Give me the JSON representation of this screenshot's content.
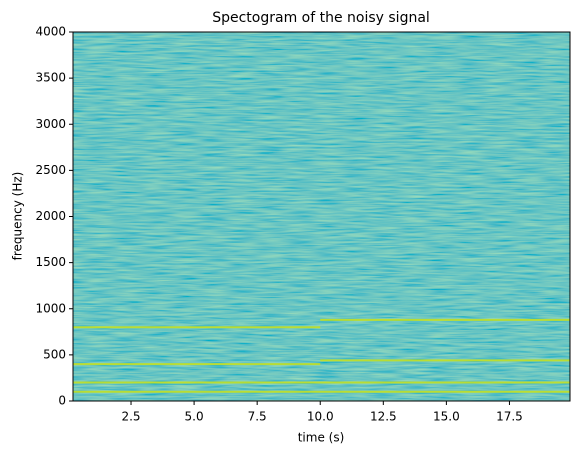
{
  "chart_data": {
    "type": "spectrogram",
    "title": "Spectogram of the noisy signal",
    "x_label": "time (s)",
    "y_label": "frequency (Hz)",
    "xlim": [
      0.2,
      19.9
    ],
    "ylim": [
      0,
      4000
    ],
    "xticks": [
      2.5,
      {
        "value": 5,
        "label": "5.0"
      },
      7.5,
      {
        "value": 10,
        "label": "10.0"
      },
      12.5,
      {
        "value": 15,
        "label": "15.0"
      },
      17.5
    ],
    "yticks": [
      0,
      500,
      1000,
      1500,
      2000,
      2500,
      3000,
      3500,
      4000
    ],
    "tones": {
      "frequency": [
        100,
        200,
        400,
        800,
        440,
        880
      ],
      "start": [
        0,
        0,
        0,
        0,
        10,
        10
      ],
      "end": [
        20,
        20,
        10,
        10,
        20,
        20
      ]
    },
    "tone_color": "#c2df23"
  }
}
